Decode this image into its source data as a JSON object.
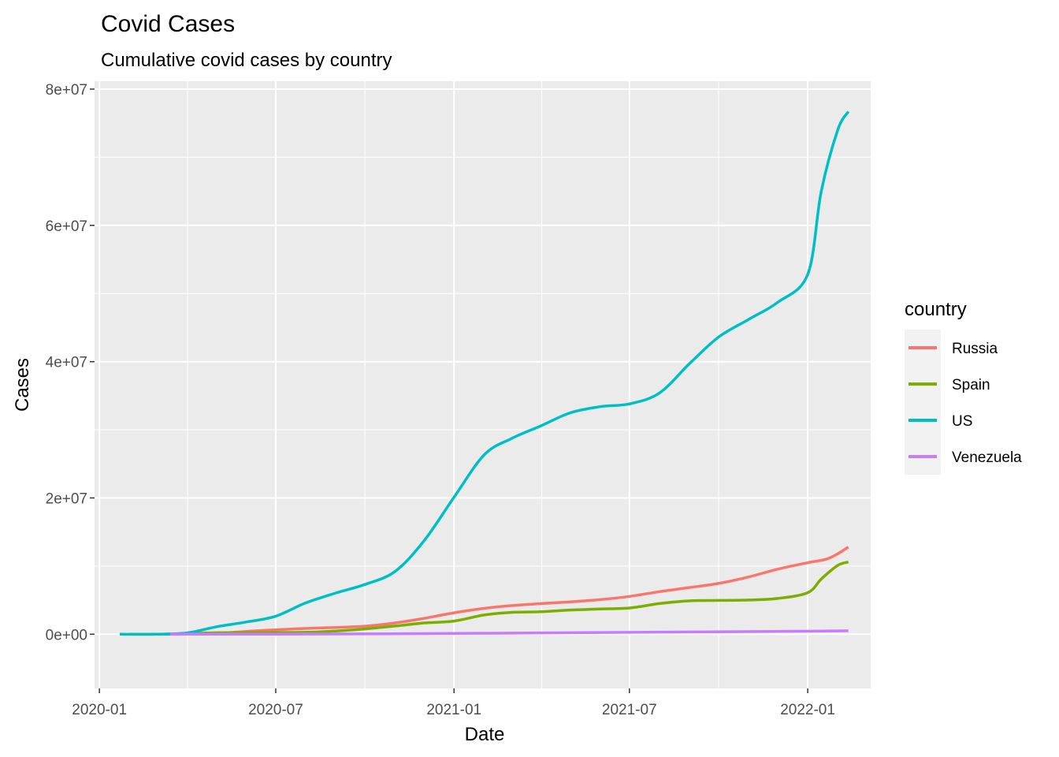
{
  "chart_data": {
    "type": "line",
    "title": "Covid Cases",
    "subtitle": "Cumulative covid cases by country",
    "xlabel": "Date",
    "ylabel": "Cases",
    "x_type": "date",
    "xlim": [
      "2019-12-27",
      "2022-03-07"
    ],
    "ylim": [
      -3900000,
      80000000
    ],
    "x_ticks": [
      {
        "value": "2020-01-01",
        "label": "2020-01"
      },
      {
        "value": "2020-07-01",
        "label": "2020-07"
      },
      {
        "value": "2021-01-01",
        "label": "2021-01"
      },
      {
        "value": "2021-07-01",
        "label": "2021-07"
      },
      {
        "value": "2022-01-01",
        "label": "2022-01"
      }
    ],
    "y_ticks": [
      {
        "value": 0,
        "label": "0e+00"
      },
      {
        "value": 20000000,
        "label": "2e+07"
      },
      {
        "value": 40000000,
        "label": "4e+07"
      },
      {
        "value": 60000000,
        "label": "6e+07"
      },
      {
        "value": 80000000,
        "label": "8e+07"
      }
    ],
    "grid": true,
    "legend": {
      "title": "country",
      "placement": "right"
    },
    "series": [
      {
        "name": "Russia",
        "color": "#F8766D",
        "points": [
          [
            "2020-03-01",
            0
          ],
          [
            "2020-04-01",
            3000
          ],
          [
            "2020-05-01",
            110000
          ],
          [
            "2020-06-01",
            420000
          ],
          [
            "2020-07-01",
            650000
          ],
          [
            "2020-08-01",
            850000
          ],
          [
            "2020-09-01",
            1000000
          ],
          [
            "2020-10-01",
            1180000
          ],
          [
            "2020-11-01",
            1650000
          ],
          [
            "2020-12-01",
            2330000
          ],
          [
            "2021-01-01",
            3150000
          ],
          [
            "2021-02-01",
            3800000
          ],
          [
            "2021-03-01",
            4200000
          ],
          [
            "2021-04-01",
            4500000
          ],
          [
            "2021-05-01",
            4750000
          ],
          [
            "2021-06-01",
            5080000
          ],
          [
            "2021-07-01",
            5550000
          ],
          [
            "2021-08-01",
            6250000
          ],
          [
            "2021-09-01",
            6850000
          ],
          [
            "2021-10-01",
            7450000
          ],
          [
            "2021-11-01",
            8400000
          ],
          [
            "2021-12-01",
            9550000
          ],
          [
            "2022-01-01",
            10500000
          ],
          [
            "2022-01-20",
            11000000
          ],
          [
            "2022-02-01",
            11800000
          ],
          [
            "2022-02-12",
            12800000
          ]
        ]
      },
      {
        "name": "Spain",
        "color": "#7CAE00",
        "points": [
          [
            "2020-02-01",
            0
          ],
          [
            "2020-03-01",
            100
          ],
          [
            "2020-04-01",
            100000
          ],
          [
            "2020-05-01",
            215000
          ],
          [
            "2020-06-01",
            240000
          ],
          [
            "2020-07-01",
            250000
          ],
          [
            "2020-08-01",
            290000
          ],
          [
            "2020-09-01",
            470000
          ],
          [
            "2020-10-01",
            780000
          ],
          [
            "2020-11-01",
            1200000
          ],
          [
            "2020-12-01",
            1650000
          ],
          [
            "2021-01-01",
            1930000
          ],
          [
            "2021-02-01",
            2820000
          ],
          [
            "2021-03-01",
            3200000
          ],
          [
            "2021-04-01",
            3300000
          ],
          [
            "2021-05-01",
            3550000
          ],
          [
            "2021-06-01",
            3700000
          ],
          [
            "2021-07-01",
            3850000
          ],
          [
            "2021-08-01",
            4500000
          ],
          [
            "2021-09-01",
            4900000
          ],
          [
            "2021-10-01",
            4960000
          ],
          [
            "2021-11-01",
            5020000
          ],
          [
            "2021-12-01",
            5250000
          ],
          [
            "2022-01-01",
            6100000
          ],
          [
            "2022-01-15",
            8100000
          ],
          [
            "2022-02-01",
            10100000
          ],
          [
            "2022-02-12",
            10600000
          ]
        ]
      },
      {
        "name": "US",
        "color": "#00BFC4",
        "points": [
          [
            "2020-01-22",
            0
          ],
          [
            "2020-03-01",
            80
          ],
          [
            "2020-04-01",
            210000
          ],
          [
            "2020-05-01",
            1100000
          ],
          [
            "2020-06-01",
            1800000
          ],
          [
            "2020-07-01",
            2650000
          ],
          [
            "2020-08-01",
            4600000
          ],
          [
            "2020-09-01",
            6050000
          ],
          [
            "2020-10-01",
            7300000
          ],
          [
            "2020-11-01",
            9200000
          ],
          [
            "2020-12-01",
            13700000
          ],
          [
            "2021-01-01",
            20100000
          ],
          [
            "2021-02-01",
            26300000
          ],
          [
            "2021-03-01",
            28700000
          ],
          [
            "2021-04-01",
            30600000
          ],
          [
            "2021-05-01",
            32500000
          ],
          [
            "2021-06-01",
            33400000
          ],
          [
            "2021-07-01",
            33800000
          ],
          [
            "2021-08-01",
            35400000
          ],
          [
            "2021-09-01",
            39700000
          ],
          [
            "2021-10-01",
            43600000
          ],
          [
            "2021-11-01",
            46200000
          ],
          [
            "2021-12-01",
            48700000
          ],
          [
            "2022-01-01",
            52800000
          ],
          [
            "2022-01-15",
            65000000
          ],
          [
            "2022-02-01",
            74000000
          ],
          [
            "2022-02-12",
            76700000
          ]
        ]
      },
      {
        "name": "Venezuela",
        "color": "#C77CFF",
        "points": [
          [
            "2020-03-14",
            0
          ],
          [
            "2020-07-01",
            7000
          ],
          [
            "2021-01-01",
            113000
          ],
          [
            "2021-07-01",
            280000
          ],
          [
            "2022-01-01",
            445000
          ],
          [
            "2022-02-12",
            500000
          ]
        ]
      }
    ]
  }
}
